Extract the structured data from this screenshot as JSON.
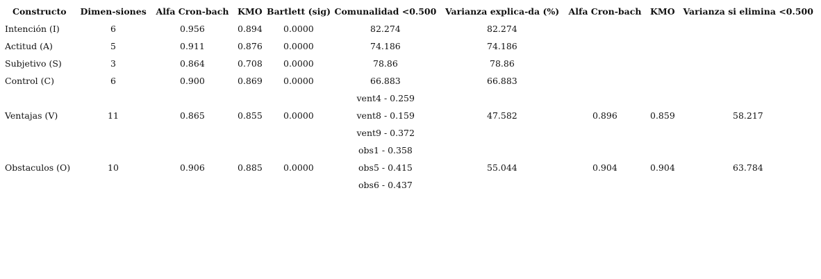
{
  "table": {
    "header": [
      "Constructo",
      "Dimen-siones",
      "Alfa Cron-bach",
      "KMO",
      "Bartlett (sig)",
      "Comunalidad <0.500",
      "Varianza explica-da (%)",
      "Alfa Cron-bach",
      "KMO",
      "Varianza si elimina <0.500"
    ],
    "rows": [
      [
        "Intención (I)",
        "6",
        "0.956",
        "0.894",
        "0.0000",
        "82.274",
        "82.274",
        null,
        null,
        null
      ],
      [
        "Actitud (A)",
        "5",
        "0.911",
        "0.876",
        "0.0000",
        "74.186",
        "74.186",
        null,
        null,
        null
      ],
      [
        "Subjetivo (S)",
        "3",
        "0.864",
        "0.708",
        "0.0000",
        "78.86",
        "78.86",
        null,
        null,
        null
      ],
      [
        "Control (C)",
        "6",
        "0.900",
        "0.869",
        "0.0000",
        "66.883",
        "66.883",
        null,
        null,
        null
      ],
      [
        null,
        null,
        null,
        null,
        null,
        "vent4 - 0.259",
        null,
        null,
        null,
        null
      ],
      [
        "Ventajas (V)",
        "11",
        "0.865",
        "0.855",
        "0.0000",
        "vent8 - 0.159",
        "47.582",
        "0.896",
        "0.859",
        "58.217"
      ],
      [
        null,
        null,
        null,
        null,
        null,
        "vent9 - 0.372",
        null,
        null,
        null,
        null
      ],
      [
        null,
        null,
        null,
        null,
        null,
        "obs1 - 0.358",
        null,
        null,
        null,
        null
      ],
      [
        "Obstaculos (O)",
        "10",
        "0.906",
        "0.885",
        "0.0000",
        "obs5 - 0.415",
        "55.044",
        "0.904",
        "0.904",
        "63.784"
      ],
      [
        null,
        null,
        null,
        null,
        null,
        "obs6 - 0.437",
        null,
        null,
        null,
        null
      ]
    ]
  }
}
